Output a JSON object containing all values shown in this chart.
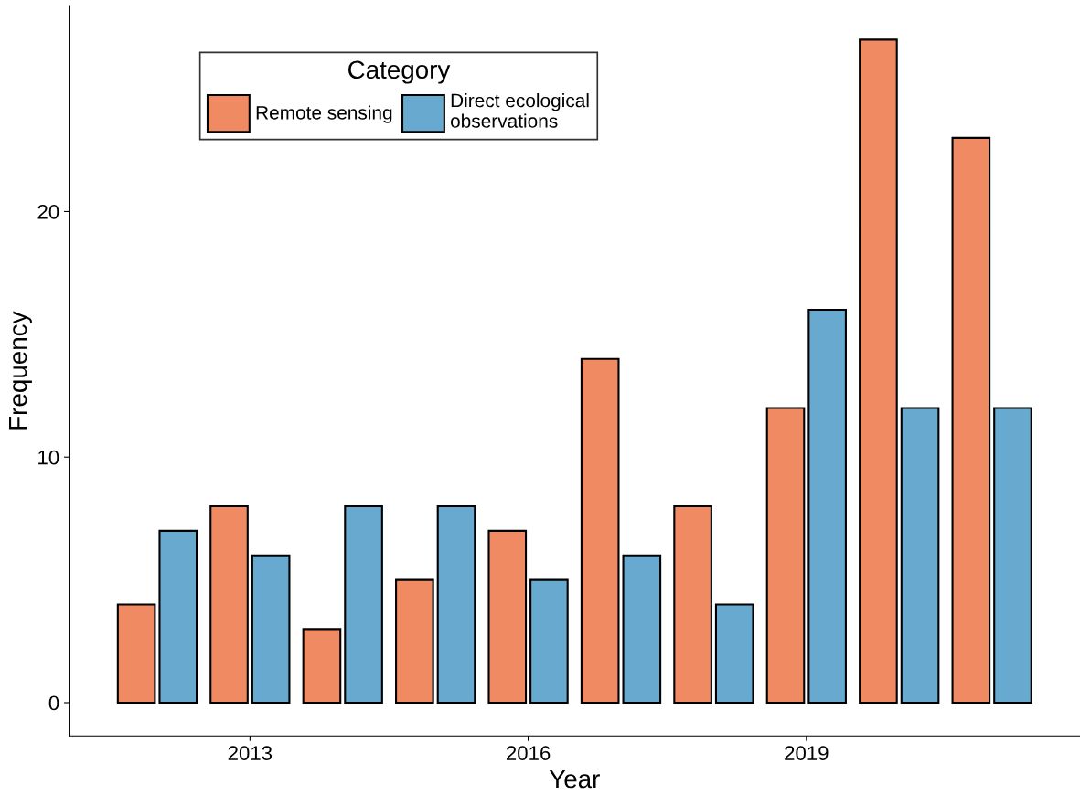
{
  "chart_data": {
    "type": "bar",
    "xlabel": "Year",
    "ylabel": "Frequency",
    "legend_title": "Category",
    "x": [
      2012,
      2013,
      2014,
      2015,
      2016,
      2017,
      2018,
      2019,
      2020,
      2021
    ],
    "series": [
      {
        "name": "Remote sensing",
        "color": "#ef8a62",
        "values": [
          4,
          8,
          3,
          5,
          7,
          14,
          8,
          12,
          27,
          23
        ]
      },
      {
        "name": "Direct ecological\nobservations",
        "color": "#67a9cf",
        "values": [
          7,
          6,
          8,
          8,
          5,
          6,
          4,
          16,
          12,
          12
        ]
      }
    ],
    "xlim": [
      2011.05,
      2021.95
    ],
    "xticks": [
      2013,
      2016,
      2019
    ],
    "ylim": [
      -1.35,
      28.35
    ],
    "yticks": [
      0,
      10,
      20
    ],
    "grid": false,
    "legend": "top left"
  }
}
